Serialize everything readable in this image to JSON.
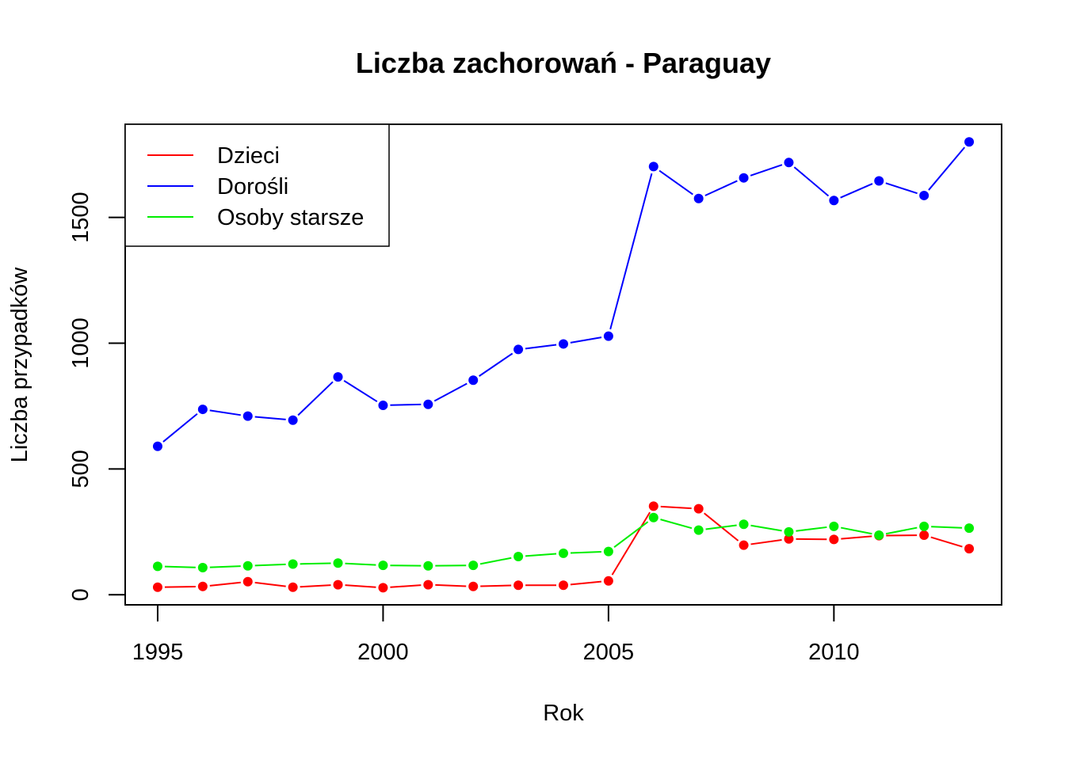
{
  "chart_data": {
    "type": "line",
    "title": "Liczba zachorowań -  Paraguay",
    "xlabel": "Rok",
    "ylabel": "Liczba przypadków",
    "x": [
      1995,
      1996,
      1997,
      1998,
      1999,
      2000,
      2001,
      2002,
      2003,
      2004,
      2005,
      2006,
      2007,
      2008,
      2009,
      2010,
      2011,
      2012,
      2013
    ],
    "xlim": [
      1994.28,
      2013.72
    ],
    "ylim": [
      -40,
      1870
    ],
    "xticks": [
      1995,
      2000,
      2005,
      2010
    ],
    "yticks": [
      0,
      500,
      1000,
      1500
    ],
    "grid": false,
    "legend_position": "top-left",
    "series": [
      {
        "name": "Dzieci",
        "color": "#ff0000",
        "values": [
          30,
          33,
          52,
          30,
          40,
          28,
          40,
          33,
          38,
          38,
          55,
          352,
          342,
          197,
          222,
          220,
          235,
          237,
          183
        ]
      },
      {
        "name": "Dorośli",
        "color": "#0000ff",
        "values": [
          590,
          737,
          710,
          694,
          866,
          753,
          757,
          853,
          975,
          997,
          1028,
          1702,
          1575,
          1657,
          1718,
          1567,
          1645,
          1587,
          1800
        ]
      },
      {
        "name": "Osoby starsze",
        "color": "#00ee00",
        "values": [
          113,
          108,
          115,
          122,
          126,
          117,
          115,
          117,
          152,
          165,
          172,
          307,
          257,
          280,
          250,
          272,
          237,
          272,
          265
        ]
      }
    ]
  }
}
